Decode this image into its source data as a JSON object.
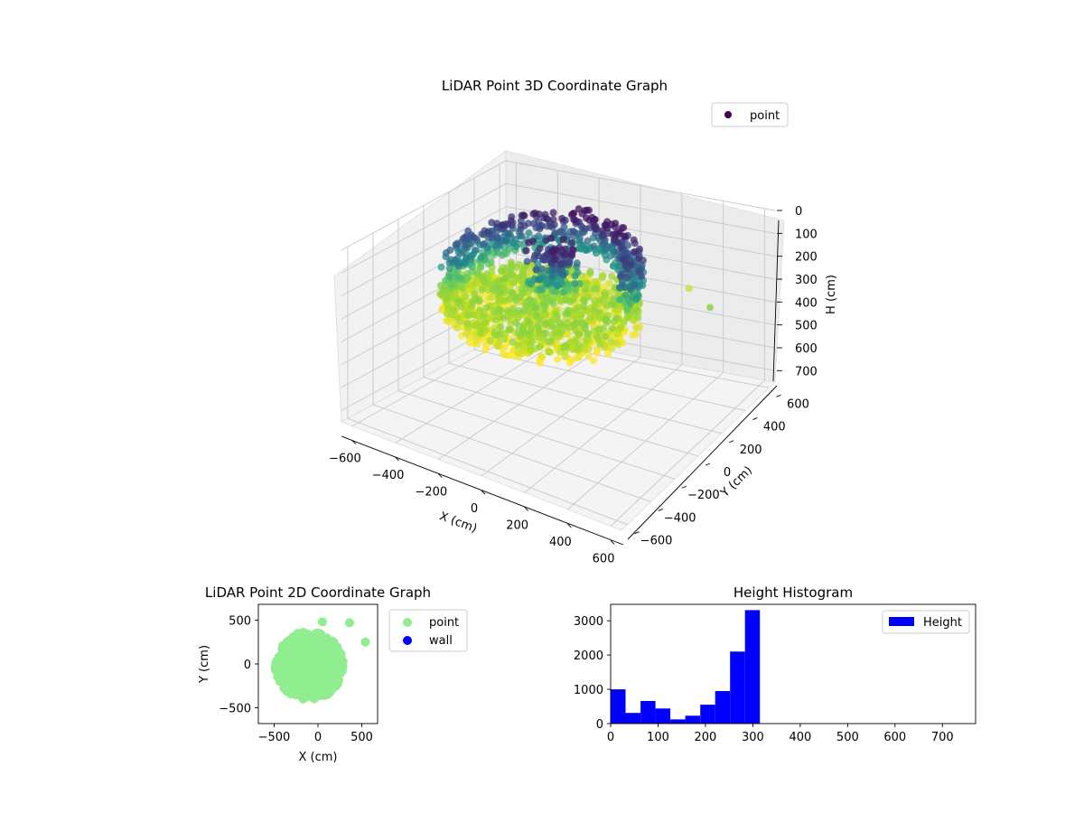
{
  "colors": {
    "point3d_legend": "#440154",
    "point2d": "#90ee90",
    "wall": "#0000ff",
    "hist": "#0000ff",
    "colormap": [
      "#440154",
      "#3b528b",
      "#21918c",
      "#5ec962",
      "#a6d92a",
      "#fde725"
    ]
  },
  "chart_data": [
    {
      "type": "scatter",
      "title": "LiDAR Point 3D Coordinate Graph",
      "xlabel": "X (cm)",
      "ylabel": "Y (cm)",
      "zlabel": "H (cm)",
      "x_ticks": [
        "−600",
        "−400",
        "−200",
        "0",
        "200",
        "400",
        "600"
      ],
      "y_ticks": [
        "−600",
        "−400",
        "−200",
        "0",
        "200",
        "400",
        "600"
      ],
      "z_ticks": [
        "0",
        "100",
        "200",
        "300",
        "400",
        "500",
        "600",
        "700"
      ],
      "xlim": [
        -650,
        650
      ],
      "ylim": [
        -650,
        650
      ],
      "zlim": [
        0,
        750
      ],
      "z_inverted": true,
      "colormap": "viridis",
      "legend": {
        "placement": "top-right",
        "entries": [
          "point"
        ]
      },
      "series": [
        {
          "name": "point",
          "description": "ring/disc of points ~radius 400 cm, heights mostly 250-320 cm, upper ring near 0-100 cm",
          "sample_points": [
            [
              -400,
              0,
              300
            ],
            [
              -300,
              250,
              280
            ],
            [
              0,
              380,
              60
            ],
            [
              250,
              300,
              80
            ],
            [
              380,
              0,
              300
            ],
            [
              300,
              -250,
              310
            ],
            [
              0,
              -400,
              320
            ],
            [
              -280,
              -280,
              300
            ],
            [
              -100,
              50,
              30
            ],
            [
              50,
              100,
              40
            ],
            [
              100,
              -80,
              250
            ],
            [
              -150,
              -150,
              200
            ],
            [
              350,
              450,
              300
            ],
            [
              550,
              250,
              250
            ]
          ]
        }
      ]
    },
    {
      "type": "scatter",
      "title": "LiDAR Point 2D Coordinate Graph",
      "xlabel": "X (cm)",
      "ylabel": "Y (cm)",
      "x_ticks": [
        "−500",
        "0",
        "500"
      ],
      "y_ticks": [
        "−500",
        "0",
        "500"
      ],
      "xlim": [
        -680,
        680
      ],
      "ylim": [
        -680,
        680
      ],
      "legend": {
        "placement": "outside-right",
        "entries": [
          "point",
          "wall"
        ]
      },
      "series": [
        {
          "name": "point",
          "description": "dense disc, radius ~400 cm centered near (-100, 0)"
        },
        {
          "name": "wall",
          "description": "no visible points"
        }
      ],
      "outliers": [
        [
          50,
          480
        ],
        [
          360,
          470
        ],
        [
          540,
          250
        ]
      ]
    },
    {
      "type": "bar",
      "title": "Height Histogram",
      "xlabel": "",
      "ylabel": "",
      "x_ticks": [
        "0",
        "100",
        "200",
        "300",
        "400",
        "500",
        "600",
        "700"
      ],
      "y_ticks": [
        "0",
        "1000",
        "2000",
        "3000"
      ],
      "xlim": [
        0,
        770
      ],
      "ylim": [
        0,
        3480
      ],
      "legend": {
        "placement": "top-right",
        "entries": [
          "Height"
        ]
      },
      "bin_width": 31.5,
      "bin_edges": [
        0,
        31.5,
        63,
        94.5,
        126,
        157.5,
        189,
        220.5,
        252,
        283.5,
        315
      ],
      "values": [
        1000,
        310,
        660,
        440,
        120,
        230,
        550,
        950,
        2100,
        3310
      ]
    }
  ]
}
